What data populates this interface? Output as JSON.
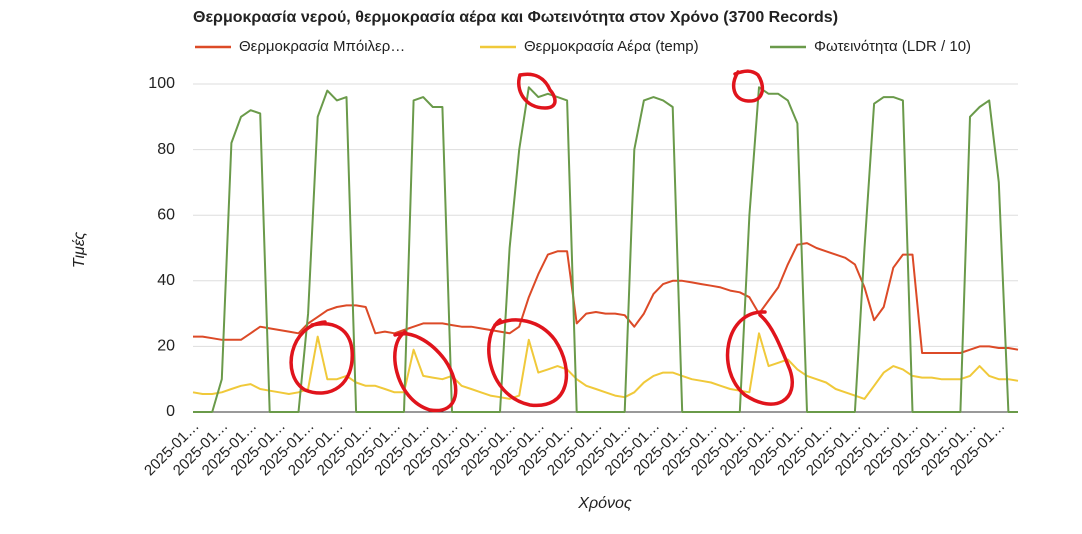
{
  "chart_data": {
    "type": "line",
    "title": "Θερμοκρασία νερού, θερμοκρασία αέρα και Φωτεινότητα στον Χρόνο (3700 Records)",
    "y_label": "Τιμές",
    "x_label": "Χρόνος",
    "ylim": [
      0,
      100
    ],
    "yticks": [
      0,
      20,
      40,
      60,
      80,
      100
    ],
    "grid": true,
    "legend": "top",
    "categories": [
      "2025-01…",
      null,
      null,
      "2025-01…",
      null,
      null,
      "2025-01…",
      null,
      null,
      "2025-01…",
      null,
      null,
      "2025-01…",
      null,
      null,
      "2025-01…",
      null,
      null,
      "2025-01…",
      null,
      null,
      "2025-01…",
      null,
      null,
      "2025-01…",
      null,
      null,
      "2025-01…",
      null,
      null,
      "2025-01…",
      null,
      null,
      "2025-01…",
      null,
      null,
      "2025-01…",
      null,
      null,
      "2025-01…",
      null,
      null,
      "2025-01…",
      null,
      null,
      "2025-01…",
      null,
      null,
      "2025-01…",
      null,
      null,
      "2025-01…",
      null,
      null,
      "2025-01…",
      null,
      null,
      "2025-01…",
      null,
      null,
      "2025-01…",
      null,
      null,
      "2025-01…",
      null,
      null,
      "2025-01…",
      null,
      null,
      "2025-01…",
      null,
      null,
      "2025-01…",
      null,
      null,
      "2025-01…",
      null,
      null,
      "2025-01…",
      null,
      null,
      "2025-01…",
      null,
      null,
      "2025-01…",
      null,
      null
    ],
    "series": [
      {
        "name": "Θερμοκρασία Μπόιλερ…",
        "color": "#dc4a27",
        "values": [
          23,
          23,
          22.5,
          22,
          22,
          22,
          24,
          26,
          25.5,
          25,
          24.5,
          24,
          27,
          29,
          31,
          32,
          32.5,
          32.5,
          32,
          24,
          24.5,
          24,
          25,
          26,
          27,
          27,
          27,
          26.5,
          26,
          26,
          25.5,
          25,
          24.5,
          24,
          26,
          35,
          42,
          48,
          49,
          49,
          27,
          30,
          30.5,
          30,
          30,
          29.5,
          26,
          30,
          36,
          39,
          40,
          40,
          39.5,
          39,
          38.5,
          38,
          37,
          36.5,
          35,
          30,
          34,
          38,
          45,
          51,
          51.5,
          50,
          49,
          48,
          47,
          45,
          38,
          28,
          32,
          44,
          48,
          48,
          18,
          18,
          18,
          18,
          18,
          19,
          20,
          20,
          19.5,
          19.5,
          19
        ]
      },
      {
        "name": "Θερμοκρασία Αέρα (temp)",
        "color": "#f0c93a",
        "values": [
          6,
          5.5,
          5.5,
          6,
          7,
          8,
          8.5,
          7,
          6.5,
          6,
          5.5,
          6,
          7,
          23,
          10,
          10,
          11,
          9,
          8,
          8,
          7,
          6,
          6,
          19,
          11,
          10.5,
          10,
          11,
          8,
          7,
          6,
          5,
          4.5,
          4,
          5,
          22,
          12,
          13,
          14,
          13,
          10,
          8,
          7,
          6,
          5,
          4.5,
          6,
          9,
          11,
          12,
          12,
          11,
          10,
          9.5,
          9,
          8,
          7,
          6.5,
          6,
          24,
          14,
          15,
          16,
          13,
          11,
          10,
          9,
          7,
          6,
          5,
          4,
          8,
          12,
          14,
          13,
          11,
          10.5,
          10.5,
          10,
          10,
          10,
          11,
          14,
          11,
          10,
          10,
          9.5
        ]
      },
      {
        "name": "Φωτεινότητα (LDR / 10)",
        "color": "#6a9a4a",
        "values": [
          0,
          0,
          0,
          10,
          82,
          90,
          92,
          91,
          0,
          0,
          0,
          0,
          30,
          90,
          98,
          95,
          96,
          0,
          0,
          0,
          0,
          0,
          0,
          95,
          96,
          93,
          93,
          0,
          0,
          0,
          0,
          0,
          0,
          50,
          80,
          99,
          96,
          97,
          96,
          95,
          0,
          0,
          0,
          0,
          0,
          0,
          80,
          95,
          96,
          95,
          93,
          0,
          0,
          0,
          0,
          0,
          0,
          0,
          60,
          99,
          97,
          97,
          95,
          88,
          0,
          0,
          0,
          0,
          0,
          0,
          50,
          94,
          96,
          96,
          95,
          0,
          0,
          0,
          0,
          0,
          0,
          90,
          93,
          95,
          70,
          0,
          0
        ]
      }
    ]
  }
}
